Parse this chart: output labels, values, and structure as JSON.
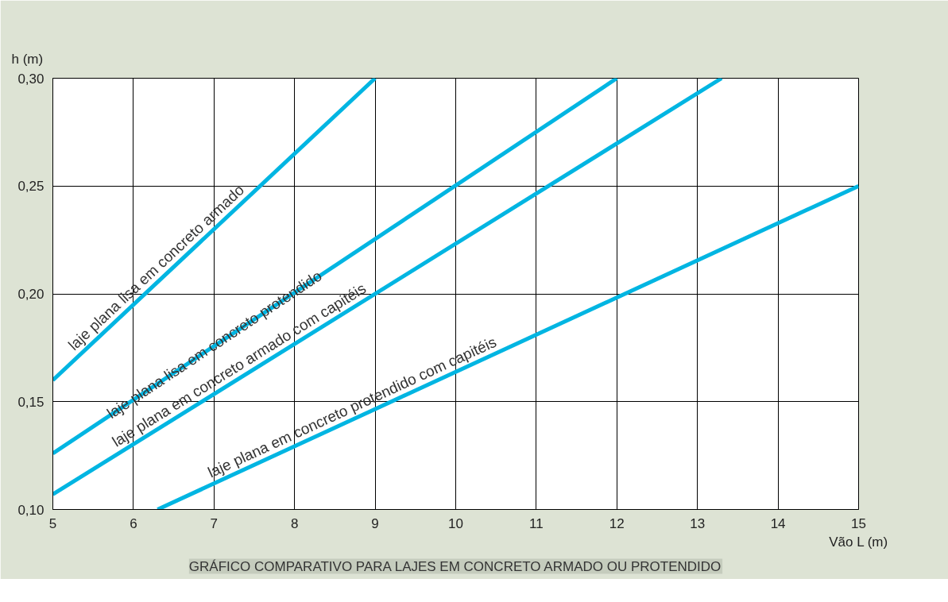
{
  "chart_data": {
    "type": "line",
    "xlabel": "Vão L (m)",
    "ylabel": "h (m)",
    "annotations": [
      "GRÁFICO COMPARATIVO PARA LAJES EM CONCRETO ARMADO OU PROTENDIDO"
    ],
    "series": [
      {
        "name": "laje plana lisa em concreto armado",
        "color": "#00b5e2",
        "x": [
          5,
          9
        ],
        "values": [
          0.16,
          0.3
        ]
      },
      {
        "name": "laje plana lisa em concreto protendido",
        "color": "#00b5e2",
        "x": [
          5,
          12
        ],
        "values": [
          0.126,
          0.3
        ]
      },
      {
        "name": "laje plana em concreto armado com capitéis",
        "color": "#00b5e2",
        "x": [
          5,
          13.3
        ],
        "values": [
          0.107,
          0.3
        ]
      },
      {
        "name": "laje plana em concreto protendido com capitéis",
        "color": "#00b5e2",
        "x": [
          6.3,
          15
        ],
        "values": [
          0.1,
          0.25
        ]
      }
    ],
    "xlim": [
      5,
      15
    ],
    "ylim": [
      0.1,
      0.3
    ],
    "xticks": [
      5,
      6,
      7,
      8,
      9,
      10,
      11,
      12,
      13,
      14,
      15
    ],
    "yticks": [
      {
        "value": 0.1,
        "label": "0,10"
      },
      {
        "value": 0.15,
        "label": "0,15"
      },
      {
        "value": 0.2,
        "label": "0,20"
      },
      {
        "value": 0.25,
        "label": "0,25"
      },
      {
        "value": 0.3,
        "label": "0,30"
      }
    ],
    "grid": true,
    "marker": "none",
    "line_style": "solid"
  }
}
